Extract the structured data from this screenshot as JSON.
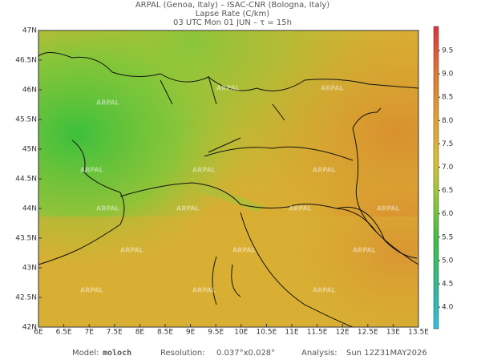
{
  "header": {
    "line1": "ARPAL (Genoa, Italy)  –  ISAC-CNR (Bologna, Italy)",
    "line2": "Lapse Rate (C/km)",
    "line3": "03 UTC Mon 01 JUN  –  τ = 15h"
  },
  "map": {
    "lat_labels": [
      "47N",
      "46.5N",
      "46N",
      "45.5N",
      "45N",
      "44.5N",
      "44N",
      "43.5N",
      "43N",
      "42.5N",
      "42N"
    ],
    "lon_labels": [
      "6E",
      "6.5E",
      "7E",
      "7.5E",
      "8E",
      "8.5E",
      "9E",
      "9.5E",
      "10E",
      "10.5E",
      "11E",
      "11.5E",
      "12E",
      "12.5E",
      "13E",
      "13.5E"
    ],
    "watermark": "ARPAL"
  },
  "colorbar": {
    "labels": [
      "9.5",
      "9.0",
      "8.5",
      "8.0",
      "7.5",
      "7.0",
      "6.5",
      "6.0",
      "5.5",
      "5.0",
      "4.5",
      "4.0"
    ]
  },
  "footer": {
    "model_label": "Model:",
    "model": "moloch",
    "resolution_label": "Resolution:",
    "resolution": "0.037°x0.028°",
    "analysis_label": "Analysis:",
    "analysis": "Sun 12Z31MAY2026"
  }
}
